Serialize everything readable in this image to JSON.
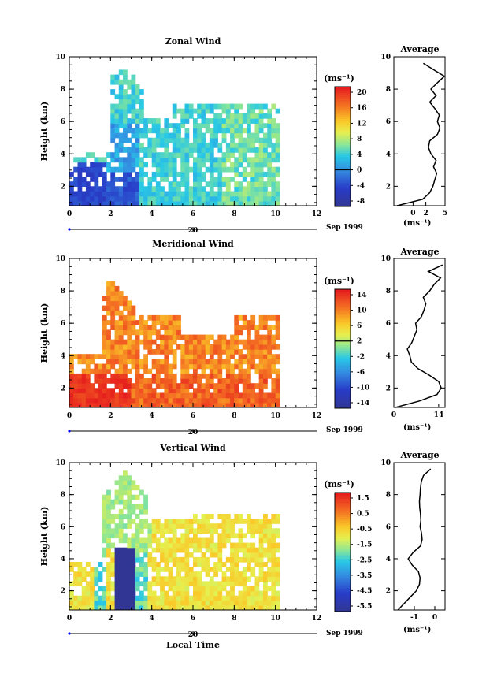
{
  "figure": {
    "xlabel_bottom": "Local Time",
    "date_label": "Sep 1999",
    "day_tick": "20",
    "x_ticks": [
      "0",
      "2",
      "4",
      "6",
      "8",
      "10",
      "12"
    ],
    "y_ticks": [
      "2",
      "4",
      "6",
      "8",
      "10"
    ],
    "ylabel": "Height (km)",
    "cbar_unit": "(ms⁻¹)",
    "profile_title": "Average"
  },
  "chart_data": [
    {
      "type": "heatmap",
      "title": "Zonal Wind",
      "xlim": [
        0,
        12
      ],
      "ylim": [
        0.8,
        10
      ],
      "colorbar": {
        "ticks": [
          "20",
          "16",
          "12",
          "8",
          "4",
          "0",
          "-4",
          "-8"
        ],
        "min": -10,
        "max": 22,
        "zero_line": 0
      },
      "data_extent": {
        "x": [
          0,
          10
        ],
        "y": [
          0.8,
          9.6
        ]
      },
      "description_values": "westerly 4-10 ms-1 aloft, easterly/negative near 2-3 h below 3 km",
      "profile": {
        "xlim": [
          -3,
          5
        ],
        "x_ticks": [
          "0",
          "2",
          "5"
        ],
        "xlabel": "(ms⁻¹)",
        "y": [
          0.8,
          1.2,
          1.6,
          2,
          2.4,
          2.8,
          3.2,
          3.6,
          4,
          4.4,
          4.8,
          5.2,
          5.6,
          6,
          6.4,
          6.8,
          7.2,
          7.6,
          8,
          8.4,
          8.8,
          9.2,
          9.6
        ],
        "x": [
          -2.5,
          1.5,
          2.6,
          3.1,
          3.4,
          3.7,
          3.2,
          3.6,
          2.8,
          2.4,
          2.6,
          3.8,
          4.2,
          3.8,
          4.1,
          3.4,
          2.6,
          3.6,
          2.8,
          3.8,
          4.9,
          3.2,
          1.6
        ]
      }
    },
    {
      "type": "heatmap",
      "title": "Meridional Wind",
      "xlim": [
        0,
        12
      ],
      "ylim": [
        0.8,
        10
      ],
      "colorbar": {
        "ticks": [
          "14",
          "10",
          "6",
          "2",
          "-2",
          "-6",
          "-10",
          "-14"
        ],
        "min": -16,
        "max": 16,
        "zero_line": 2
      },
      "data_extent": {
        "x": [
          0,
          10
        ],
        "y": [
          0.8,
          9.0
        ]
      },
      "profile": {
        "xlim": [
          0,
          16
        ],
        "x_ticks": [
          "0",
          "14"
        ],
        "xlabel": "(ms⁻¹)",
        "y": [
          0.8,
          1.2,
          1.6,
          2,
          2.4,
          2.8,
          3.2,
          3.6,
          4,
          4.4,
          4.8,
          5.2,
          5.6,
          6,
          6.4,
          6.8,
          7.2,
          7.6,
          8,
          8.4,
          8.8,
          9.2,
          9.6
        ],
        "x": [
          0.5,
          8,
          13.5,
          14.8,
          14,
          11,
          7.5,
          5.5,
          5,
          4.2,
          5.6,
          6.4,
          7.2,
          6.8,
          8.6,
          9.4,
          10,
          9.2,
          11.2,
          12.6,
          14.6,
          10.8,
          15.2
        ]
      }
    },
    {
      "type": "heatmap",
      "title": "Vertical Wind",
      "xlim": [
        0,
        12
      ],
      "ylim": [
        0.8,
        10
      ],
      "colorbar": {
        "ticks": [
          "1.5",
          "0.5",
          "-0.5",
          "-1.5",
          "-2.5",
          "-3.5",
          "-4.5",
          "-5.5"
        ],
        "min": -6,
        "max": 2,
        "zero_line": null
      },
      "data_extent": {
        "x": [
          0,
          10
        ],
        "y": [
          0.8,
          9.6
        ]
      },
      "profile": {
        "xlim": [
          -2,
          0.5
        ],
        "x_ticks": [
          "-1",
          "0"
        ],
        "xlabel": "(ms⁻¹)",
        "y": [
          0.8,
          1.2,
          1.6,
          2,
          2.4,
          2.8,
          3.2,
          3.6,
          4,
          4.4,
          4.8,
          5.2,
          5.6,
          6,
          6.4,
          6.8,
          7.2,
          7.6,
          8,
          8.4,
          8.8,
          9.2,
          9.6
        ],
        "x": [
          -1.8,
          -1.5,
          -1.2,
          -0.9,
          -0.75,
          -0.72,
          -0.8,
          -1.1,
          -1.3,
          -1.05,
          -0.7,
          -0.62,
          -0.65,
          -0.72,
          -0.68,
          -0.7,
          -0.74,
          -0.75,
          -0.72,
          -0.7,
          -0.66,
          -0.55,
          -0.2
        ]
      }
    }
  ]
}
